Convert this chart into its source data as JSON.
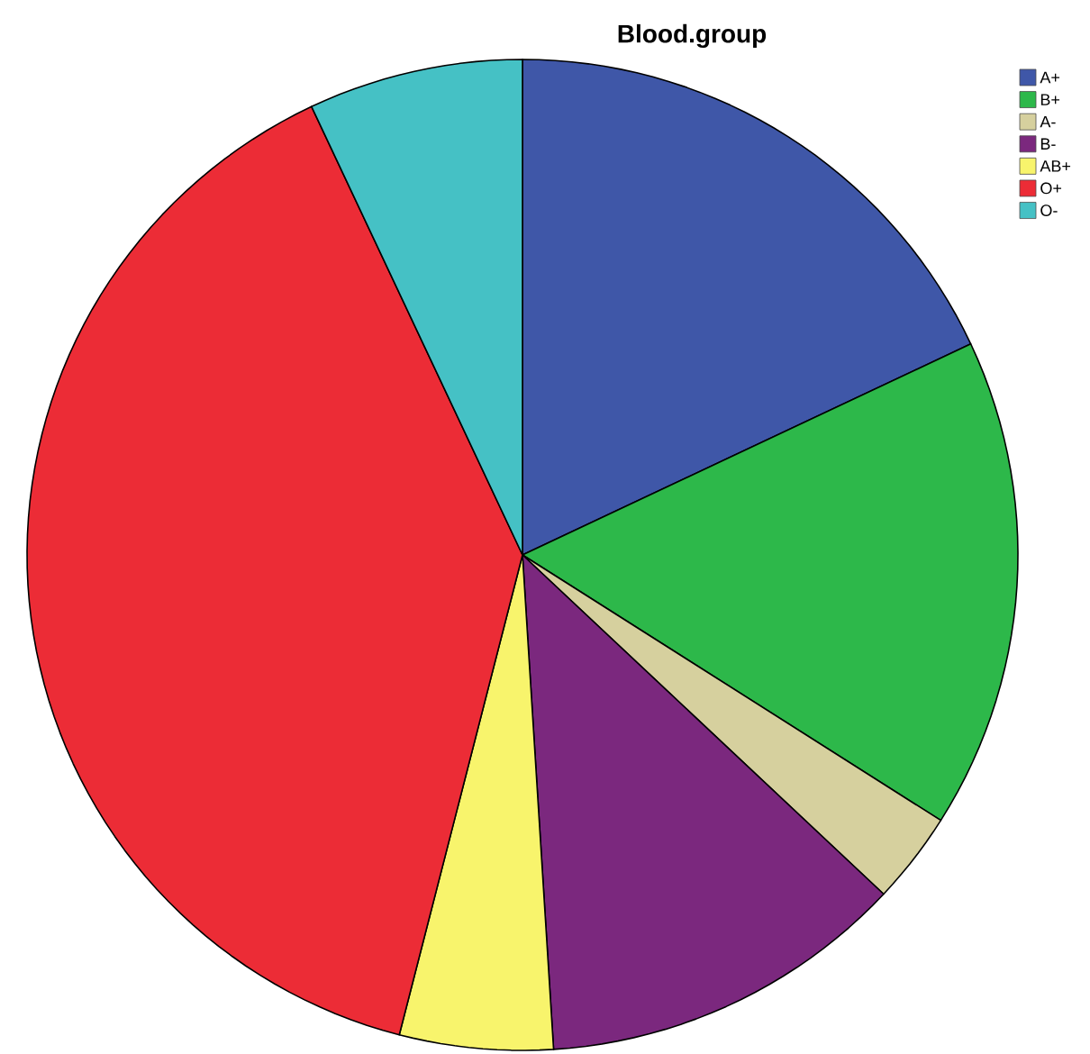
{
  "chart_data": {
    "type": "pie",
    "title": "Blood.group",
    "categories": [
      "A+",
      "B+",
      "A-",
      "B-",
      "AB+",
      "O+",
      "O-"
    ],
    "values": [
      18,
      16,
      3,
      12,
      5,
      39,
      7
    ],
    "colors": [
      "#3f57a8",
      "#2db84a",
      "#d6d09e",
      "#7b287e",
      "#f8f46c",
      "#ec2c36",
      "#45c1c5"
    ],
    "legend": "top right"
  }
}
